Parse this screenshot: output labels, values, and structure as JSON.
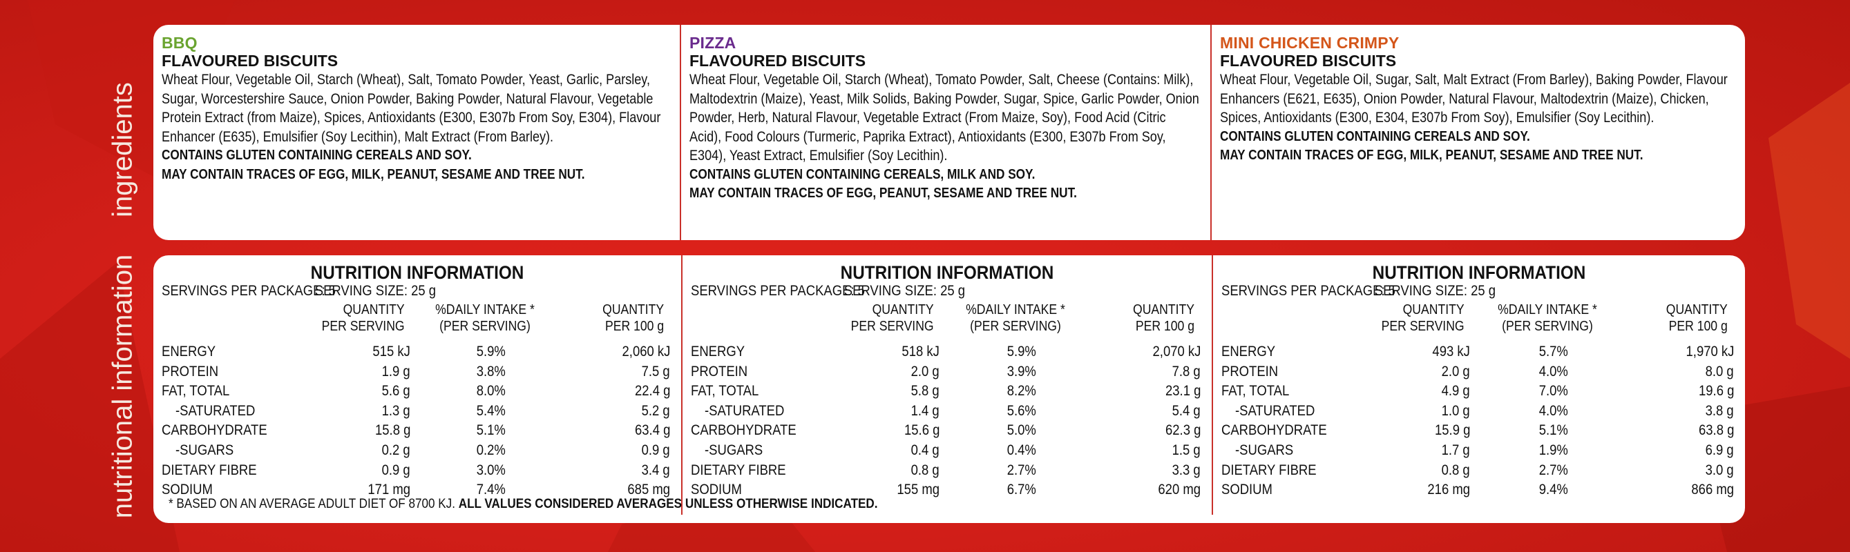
{
  "side_labels": {
    "ingredients": "ingredients",
    "nutrition": "nutritional information"
  },
  "colors": {
    "bbq": "#6aa430",
    "pizza": "#6a2b8d",
    "chicken": "#d4561a",
    "background": "#d11e18"
  },
  "ingredients": [
    {
      "flavour": "BBQ",
      "subtitle": "FLAVOURED BISCUITS",
      "text": "Wheat Flour, Vegetable Oil, Starch (Wheat), Salt, Tomato Powder, Yeast, Garlic, Parsley, Sugar, Worcestershire Sauce, Onion Powder, Baking Powder, Natural Flavour, Vegetable Protein Extract (from Maize), Spices, Antioxidants (E300, E307b From Soy, E304), Flavour Enhancer (E635), Emulsifier (Soy Lecithin), Malt Extract (From Barley).",
      "warning1": "CONTAINS GLUTEN CONTAINING CEREALS AND SOY.",
      "warning2": "MAY CONTAIN TRACES OF EGG, MILK, PEANUT, SESAME AND TREE NUT."
    },
    {
      "flavour": "PIZZA",
      "subtitle": "FLAVOURED BISCUITS",
      "text": "Wheat Flour, Vegetable Oil, Starch (Wheat), Tomato Powder, Salt, Cheese (Contains: Milk), Maltodextrin (Maize), Yeast, Milk Solids, Baking Powder, Sugar, Spice, Garlic Powder, Onion Powder, Herb, Natural Flavour, Vegetable Extract (From Maize, Soy), Food Acid (Citric Acid), Food Colours (Turmeric, Paprika Extract), Antioxidants (E300, E307b From Soy, E304), Yeast Extract, Emulsifier (Soy Lecithin).",
      "warning1": "CONTAINS GLUTEN CONTAINING CEREALS, MILK AND SOY.",
      "warning2": "MAY CONTAIN TRACES OF EGG, PEANUT, SESAME AND TREE NUT."
    },
    {
      "flavour": "MINI CHICKEN CRIMPY",
      "subtitle": "FLAVOURED BISCUITS",
      "text": "Wheat Flour, Vegetable Oil, Sugar, Salt, Malt Extract (From Barley), Baking Powder, Flavour Enhancers (E621, E635), Onion Powder, Natural Flavour, Maltodextrin (Maize), Chicken, Spices, Antioxidants (E300, E304, E307b From Soy), Emulsifier (Soy Lecithin).",
      "warning1": "CONTAINS GLUTEN CONTAINING CEREALS AND SOY.",
      "warning2": "MAY CONTAIN TRACES OF EGG, MILK, PEANUT, SESAME AND TREE NUT."
    }
  ],
  "nutrition_common": {
    "heading": "NUTRITION INFORMATION",
    "servings": "SERVINGS PER PACKAGE: 5",
    "serving_size": "SERVING SIZE: 25 g",
    "col1a": "QUANTITY",
    "col1b": "PER SERVING",
    "col2a": "%DAILY INTAKE *",
    "col2b": "(PER SERVING)",
    "col3a": "QUANTITY",
    "col3b": "PER 100 g",
    "labels": [
      "ENERGY",
      "PROTEIN",
      "FAT, TOTAL",
      "  -SATURATED",
      "CARBOHYDRATE",
      "  -SUGARS",
      "DIETARY FIBRE",
      "SODIUM"
    ]
  },
  "nutrition": [
    {
      "rows": [
        [
          "515 kJ",
          "5.9%",
          "2,060 kJ"
        ],
        [
          "1.9 g",
          "3.8%",
          "7.5 g"
        ],
        [
          "5.6 g",
          "8.0%",
          "22.4 g"
        ],
        [
          "1.3 g",
          "5.4%",
          "5.2 g"
        ],
        [
          "15.8 g",
          "5.1%",
          "63.4 g"
        ],
        [
          "0.2 g",
          "0.2%",
          "0.9 g"
        ],
        [
          "0.9 g",
          "3.0%",
          "3.4 g"
        ],
        [
          "171 mg",
          "7.4%",
          "685 mg"
        ]
      ]
    },
    {
      "rows": [
        [
          "518 kJ",
          "5.9%",
          "2,070 kJ"
        ],
        [
          "2.0 g",
          "3.9%",
          "7.8 g"
        ],
        [
          "5.8 g",
          "8.2%",
          "23.1 g"
        ],
        [
          "1.4 g",
          "5.6%",
          "5.4 g"
        ],
        [
          "15.6 g",
          "5.0%",
          "62.3 g"
        ],
        [
          "0.4 g",
          "0.4%",
          "1.5 g"
        ],
        [
          "0.8 g",
          "2.7%",
          "3.3 g"
        ],
        [
          "155 mg",
          "6.7%",
          "620 mg"
        ]
      ]
    },
    {
      "rows": [
        [
          "493 kJ",
          "5.7%",
          "1,970 kJ"
        ],
        [
          "2.0 g",
          "4.0%",
          "8.0 g"
        ],
        [
          "4.9 g",
          "7.0%",
          "19.6 g"
        ],
        [
          "1.0 g",
          "4.0%",
          "3.8 g"
        ],
        [
          "15.9 g",
          "5.1%",
          "63.8 g"
        ],
        [
          "1.7 g",
          "1.9%",
          "6.9 g"
        ],
        [
          "0.8 g",
          "2.7%",
          "3.0 g"
        ],
        [
          "216 mg",
          "9.4%",
          "866 mg"
        ]
      ]
    }
  ],
  "footnote": {
    "plain": "* BASED ON AN AVERAGE ADULT DIET OF 8700 KJ.",
    "bold": "ALL VALUES CONSIDERED AVERAGES UNLESS OTHERWISE INDICATED."
  }
}
